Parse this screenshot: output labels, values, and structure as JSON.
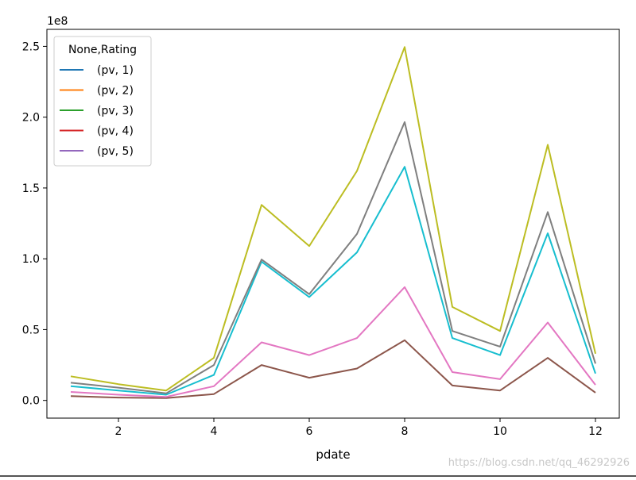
{
  "chart_data": {
    "type": "line",
    "title": "",
    "xlabel": "pdate",
    "ylabel": "",
    "y_offset_label": "1e8",
    "x": [
      1,
      2,
      3,
      4,
      5,
      6,
      7,
      8,
      9,
      10,
      11,
      12
    ],
    "xlim": [
      0.5,
      12.5
    ],
    "ylim": [
      -0.125,
      2.62
    ],
    "xticks": [
      2,
      4,
      6,
      8,
      10,
      12
    ],
    "yticks": [
      0.0,
      0.5,
      1.0,
      1.5,
      2.0,
      2.5
    ],
    "ytick_labels": [
      "0.0",
      "0.5",
      "1.0",
      "1.5",
      "2.0",
      "2.5"
    ],
    "y_scale": 100000000,
    "grid": false,
    "legend": {
      "title": "None,Rating",
      "position": "top-left",
      "entries": [
        {
          "label": "(pv, 1)",
          "color": "#1f77b4"
        },
        {
          "label": "(pv, 2)",
          "color": "#ff7f0e"
        },
        {
          "label": "(pv, 3)",
          "color": "#2ca02c"
        },
        {
          "label": "(pv, 4)",
          "color": "#d62728"
        },
        {
          "label": "(pv, 5)",
          "color": "#9467bd"
        }
      ]
    },
    "series": [
      {
        "color": "#8c564b",
        "values": [
          0.03,
          0.02,
          0.017,
          0.045,
          0.25,
          0.16,
          0.225,
          0.425,
          0.105,
          0.07,
          0.3,
          0.055
        ]
      },
      {
        "color": "#e377c2",
        "values": [
          0.06,
          0.04,
          0.025,
          0.1,
          0.41,
          0.32,
          0.44,
          0.8,
          0.2,
          0.15,
          0.55,
          0.11
        ]
      },
      {
        "color": "#17becf",
        "values": [
          0.1,
          0.07,
          0.04,
          0.18,
          0.98,
          0.73,
          1.045,
          1.65,
          0.44,
          0.32,
          1.18,
          0.19
        ]
      },
      {
        "color": "#7f7f7f",
        "values": [
          0.125,
          0.09,
          0.05,
          0.25,
          0.995,
          0.75,
          1.175,
          1.965,
          0.49,
          0.38,
          1.33,
          0.26
        ]
      },
      {
        "color": "#bcbd22",
        "values": [
          0.17,
          0.115,
          0.07,
          0.3,
          1.38,
          1.09,
          1.62,
          2.495,
          0.66,
          0.49,
          1.805,
          0.33
        ]
      }
    ]
  },
  "watermark": "https://blog.csdn.net/qq_46292926"
}
